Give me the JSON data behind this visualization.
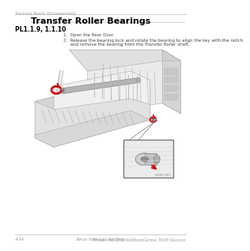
{
  "header_text": "Service Parts Disassembly",
  "title": "Transfer Roller Bearings",
  "part_numbers": "PL1.1.9, 1.1.10",
  "step1": "1.  Open the Rear Door.",
  "step2_line1": "2.  Release the bearing lock and rotate the bearing to align the key with the notch",
  "step2_line2": "     and remove the bearing from the Transfer Roller shaft.",
  "image_label": "s3040-061",
  "footer_left": "4-54",
  "footer_center": "Xerox Internal Use Only",
  "footer_right": "Phaser 3010/3040/WorkCentre 3045 Service",
  "bg_color": "#ffffff",
  "line_color": "#bbbbbb",
  "title_color": "#000000",
  "text_color": "#555555",
  "red_color": "#cc1111",
  "gray_light": "#e8e8e8",
  "gray_mid": "#c8c8c8",
  "gray_dark": "#999999",
  "diagram_outline": "#aaaaaa"
}
